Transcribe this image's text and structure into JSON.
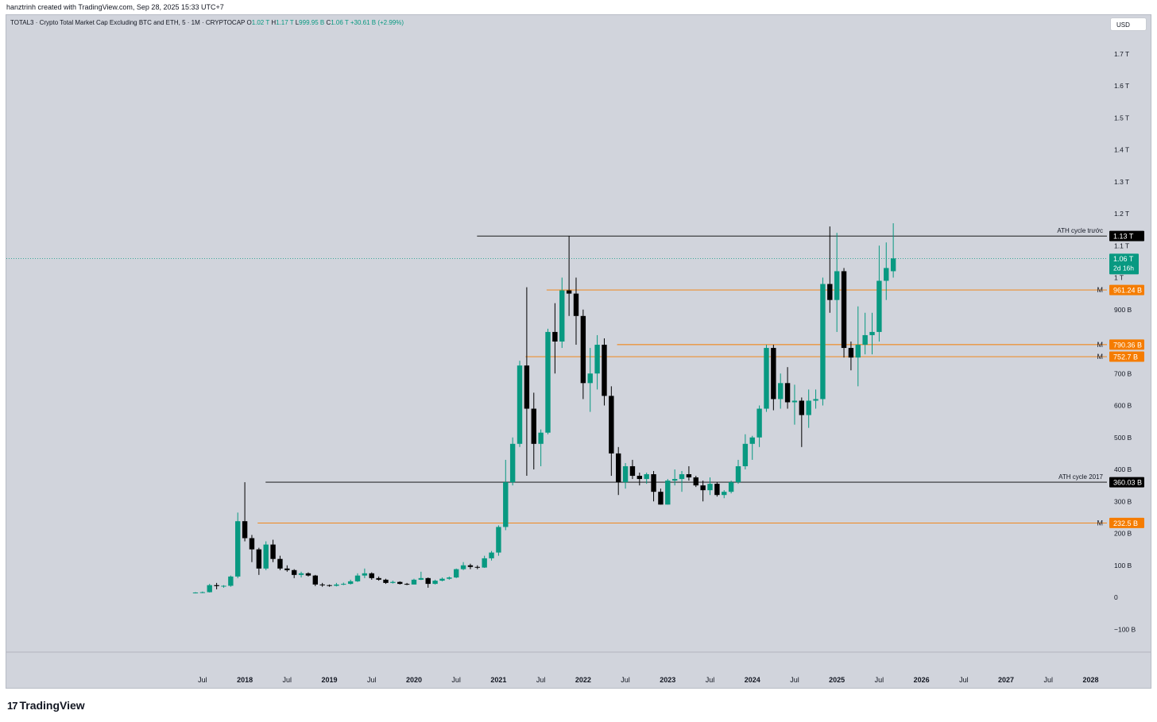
{
  "header": {
    "credit": "hanztrinh created with TradingView.com, Sep 28, 2025 15:33 UTC+7"
  },
  "legend": {
    "symbol": "TOTAL3 · Crypto Total Market Cap Excluding BTC and ETH, 5 · 1M · CRYPTOCAP",
    "open_label": "O",
    "open": "1.02 T",
    "high_label": "H",
    "high": "1.17 T",
    "low_label": "L",
    "low": "999.95 B",
    "close_label": "C",
    "close": "1.06 T",
    "change": "+30.61 B (+2.99%)"
  },
  "currency": "USD",
  "brand": {
    "logo": "17",
    "name": "TradingView"
  },
  "colors": {
    "background": "#d1d4dc",
    "up": "#089981",
    "down": "#000000",
    "level": "#f57c00",
    "ath_line": "#000000"
  },
  "chart_data": {
    "type": "candlestick",
    "interval": "1M",
    "y_axis": {
      "min": -100000000000,
      "max": 1700000000000,
      "side": "right",
      "ticks": [
        {
          "v": 1700000000000,
          "label": "1.7 T"
        },
        {
          "v": 1600000000000,
          "label": "1.6 T"
        },
        {
          "v": 1500000000000,
          "label": "1.5 T"
        },
        {
          "v": 1400000000000,
          "label": "1.4 T"
        },
        {
          "v": 1300000000000,
          "label": "1.3 T"
        },
        {
          "v": 1200000000000,
          "label": "1.2 T"
        },
        {
          "v": 1100000000000,
          "label": "1.1 T"
        },
        {
          "v": 1000000000000,
          "label": "1 T"
        },
        {
          "v": 900000000000,
          "label": "900 B"
        },
        {
          "v": 700000000000,
          "label": "700 B"
        },
        {
          "v": 600000000000,
          "label": "600 B"
        },
        {
          "v": 500000000000,
          "label": "500 B"
        },
        {
          "v": 400000000000,
          "label": "400 B"
        },
        {
          "v": 300000000000,
          "label": "300 B"
        },
        {
          "v": 200000000000,
          "label": "200 B"
        },
        {
          "v": 100000000000,
          "label": "100 B"
        },
        {
          "v": 0,
          "label": "0"
        },
        {
          "v": -100000000000,
          "label": "−100 B"
        }
      ]
    },
    "x_axis": {
      "start": "2017-04",
      "end": "2028-06",
      "ticks": [
        {
          "m": "2017-07",
          "label": "Jul",
          "bold": false
        },
        {
          "m": "2018-01",
          "label": "2018",
          "bold": true
        },
        {
          "m": "2018-07",
          "label": "Jul",
          "bold": false
        },
        {
          "m": "2019-01",
          "label": "2019",
          "bold": true
        },
        {
          "m": "2019-07",
          "label": "Jul",
          "bold": false
        },
        {
          "m": "2020-01",
          "label": "2020",
          "bold": true
        },
        {
          "m": "2020-07",
          "label": "Jul",
          "bold": false
        },
        {
          "m": "2021-01",
          "label": "2021",
          "bold": true
        },
        {
          "m": "2021-07",
          "label": "Jul",
          "bold": false
        },
        {
          "m": "2022-01",
          "label": "2022",
          "bold": true
        },
        {
          "m": "2022-07",
          "label": "Jul",
          "bold": false
        },
        {
          "m": "2023-01",
          "label": "2023",
          "bold": true
        },
        {
          "m": "2023-07",
          "label": "Jul",
          "bold": false
        },
        {
          "m": "2024-01",
          "label": "2024",
          "bold": true
        },
        {
          "m": "2024-07",
          "label": "Jul",
          "bold": false
        },
        {
          "m": "2025-01",
          "label": "2025",
          "bold": true
        },
        {
          "m": "2025-07",
          "label": "Jul",
          "bold": false
        },
        {
          "m": "2026-01",
          "label": "2026",
          "bold": true
        },
        {
          "m": "2026-07",
          "label": "Jul",
          "bold": false
        },
        {
          "m": "2027-01",
          "label": "2027",
          "bold": true
        },
        {
          "m": "2027-07",
          "label": "Jul",
          "bold": false
        },
        {
          "m": "2028-01",
          "label": "2028",
          "bold": true
        }
      ]
    },
    "candles": [
      {
        "m": "2017-06",
        "o": 14,
        "h": 16,
        "l": 12,
        "c": 15
      },
      {
        "m": "2017-07",
        "o": 15,
        "h": 18,
        "l": 13,
        "c": 16
      },
      {
        "m": "2017-08",
        "o": 16,
        "h": 42,
        "l": 15,
        "c": 38
      },
      {
        "m": "2017-09",
        "o": 38,
        "h": 45,
        "l": 25,
        "c": 35
      },
      {
        "m": "2017-10",
        "o": 35,
        "h": 38,
        "l": 30,
        "c": 36
      },
      {
        "m": "2017-11",
        "o": 36,
        "h": 68,
        "l": 33,
        "c": 65
      },
      {
        "m": "2017-12",
        "o": 65,
        "h": 265,
        "l": 60,
        "c": 238
      },
      {
        "m": "2018-01",
        "o": 238,
        "h": 360,
        "l": 175,
        "c": 185
      },
      {
        "m": "2018-02",
        "o": 185,
        "h": 195,
        "l": 110,
        "c": 150
      },
      {
        "m": "2018-03",
        "o": 150,
        "h": 155,
        "l": 70,
        "c": 90
      },
      {
        "m": "2018-04",
        "o": 90,
        "h": 175,
        "l": 85,
        "c": 165
      },
      {
        "m": "2018-05",
        "o": 165,
        "h": 180,
        "l": 110,
        "c": 120
      },
      {
        "m": "2018-06",
        "o": 120,
        "h": 130,
        "l": 85,
        "c": 90
      },
      {
        "m": "2018-07",
        "o": 90,
        "h": 100,
        "l": 80,
        "c": 85
      },
      {
        "m": "2018-08",
        "o": 85,
        "h": 88,
        "l": 60,
        "c": 70
      },
      {
        "m": "2018-09",
        "o": 70,
        "h": 80,
        "l": 62,
        "c": 75
      },
      {
        "m": "2018-10",
        "o": 75,
        "h": 78,
        "l": 65,
        "c": 68
      },
      {
        "m": "2018-11",
        "o": 68,
        "h": 70,
        "l": 35,
        "c": 40
      },
      {
        "m": "2018-12",
        "o": 40,
        "h": 45,
        "l": 33,
        "c": 38
      },
      {
        "m": "2019-01",
        "o": 38,
        "h": 40,
        "l": 33,
        "c": 36
      },
      {
        "m": "2019-02",
        "o": 36,
        "h": 45,
        "l": 34,
        "c": 40
      },
      {
        "m": "2019-03",
        "o": 40,
        "h": 46,
        "l": 38,
        "c": 42
      },
      {
        "m": "2019-04",
        "o": 42,
        "h": 55,
        "l": 40,
        "c": 50
      },
      {
        "m": "2019-05",
        "o": 50,
        "h": 75,
        "l": 48,
        "c": 68
      },
      {
        "m": "2019-06",
        "o": 68,
        "h": 90,
        "l": 60,
        "c": 75
      },
      {
        "m": "2019-07",
        "o": 75,
        "h": 78,
        "l": 55,
        "c": 60
      },
      {
        "m": "2019-08",
        "o": 60,
        "h": 65,
        "l": 52,
        "c": 55
      },
      {
        "m": "2019-09",
        "o": 55,
        "h": 58,
        "l": 42,
        "c": 45
      },
      {
        "m": "2019-10",
        "o": 45,
        "h": 52,
        "l": 43,
        "c": 48
      },
      {
        "m": "2019-11",
        "o": 48,
        "h": 50,
        "l": 40,
        "c": 42
      },
      {
        "m": "2019-12",
        "o": 42,
        "h": 45,
        "l": 38,
        "c": 40
      },
      {
        "m": "2020-01",
        "o": 40,
        "h": 58,
        "l": 40,
        "c": 55
      },
      {
        "m": "2020-02",
        "o": 55,
        "h": 80,
        "l": 54,
        "c": 60
      },
      {
        "m": "2020-03",
        "o": 60,
        "h": 62,
        "l": 30,
        "c": 42
      },
      {
        "m": "2020-04",
        "o": 42,
        "h": 55,
        "l": 40,
        "c": 52
      },
      {
        "m": "2020-05",
        "o": 52,
        "h": 62,
        "l": 50,
        "c": 58
      },
      {
        "m": "2020-06",
        "o": 58,
        "h": 65,
        "l": 55,
        "c": 62
      },
      {
        "m": "2020-07",
        "o": 62,
        "h": 90,
        "l": 60,
        "c": 88
      },
      {
        "m": "2020-08",
        "o": 88,
        "h": 110,
        "l": 85,
        "c": 100
      },
      {
        "m": "2020-09",
        "o": 100,
        "h": 105,
        "l": 88,
        "c": 95
      },
      {
        "m": "2020-10",
        "o": 95,
        "h": 100,
        "l": 88,
        "c": 93
      },
      {
        "m": "2020-11",
        "o": 93,
        "h": 130,
        "l": 92,
        "c": 122
      },
      {
        "m": "2020-12",
        "o": 122,
        "h": 145,
        "l": 115,
        "c": 140
      },
      {
        "m": "2021-01",
        "o": 140,
        "h": 225,
        "l": 130,
        "c": 220
      },
      {
        "m": "2021-02",
        "o": 220,
        "h": 430,
        "l": 210,
        "c": 360
      },
      {
        "m": "2021-03",
        "o": 360,
        "h": 500,
        "l": 350,
        "c": 480
      },
      {
        "m": "2021-04",
        "o": 480,
        "h": 740,
        "l": 470,
        "c": 725
      },
      {
        "m": "2021-05",
        "o": 725,
        "h": 970,
        "l": 380,
        "c": 590
      },
      {
        "m": "2021-06",
        "o": 590,
        "h": 640,
        "l": 400,
        "c": 480
      },
      {
        "m": "2021-07",
        "o": 480,
        "h": 525,
        "l": 410,
        "c": 515
      },
      {
        "m": "2021-08",
        "o": 515,
        "h": 840,
        "l": 510,
        "c": 830
      },
      {
        "m": "2021-09",
        "o": 830,
        "h": 920,
        "l": 700,
        "c": 800
      },
      {
        "m": "2021-10",
        "o": 800,
        "h": 1000,
        "l": 780,
        "c": 960
      },
      {
        "m": "2021-11",
        "o": 960,
        "h": 1130,
        "l": 880,
        "c": 950
      },
      {
        "m": "2021-12",
        "o": 950,
        "h": 1000,
        "l": 790,
        "c": 880
      },
      {
        "m": "2022-01",
        "o": 880,
        "h": 900,
        "l": 620,
        "c": 670
      },
      {
        "m": "2022-02",
        "o": 670,
        "h": 780,
        "l": 580,
        "c": 700
      },
      {
        "m": "2022-03",
        "o": 700,
        "h": 820,
        "l": 650,
        "c": 790
      },
      {
        "m": "2022-04",
        "o": 790,
        "h": 810,
        "l": 600,
        "c": 630
      },
      {
        "m": "2022-05",
        "o": 630,
        "h": 660,
        "l": 380,
        "c": 450
      },
      {
        "m": "2022-06",
        "o": 450,
        "h": 470,
        "l": 320,
        "c": 360
      },
      {
        "m": "2022-07",
        "o": 360,
        "h": 420,
        "l": 340,
        "c": 410
      },
      {
        "m": "2022-08",
        "o": 410,
        "h": 430,
        "l": 370,
        "c": 380
      },
      {
        "m": "2022-09",
        "o": 380,
        "h": 390,
        "l": 350,
        "c": 370
      },
      {
        "m": "2022-10",
        "o": 370,
        "h": 390,
        "l": 355,
        "c": 385
      },
      {
        "m": "2022-11",
        "o": 385,
        "h": 395,
        "l": 300,
        "c": 330
      },
      {
        "m": "2022-12",
        "o": 330,
        "h": 340,
        "l": 290,
        "c": 290
      },
      {
        "m": "2023-01",
        "o": 290,
        "h": 370,
        "l": 290,
        "c": 365
      },
      {
        "m": "2023-02",
        "o": 365,
        "h": 400,
        "l": 350,
        "c": 370
      },
      {
        "m": "2023-03",
        "o": 370,
        "h": 395,
        "l": 330,
        "c": 385
      },
      {
        "m": "2023-04",
        "o": 385,
        "h": 410,
        "l": 365,
        "c": 375
      },
      {
        "m": "2023-05",
        "o": 375,
        "h": 380,
        "l": 345,
        "c": 350
      },
      {
        "m": "2023-06",
        "o": 350,
        "h": 365,
        "l": 300,
        "c": 335
      },
      {
        "m": "2023-07",
        "o": 335,
        "h": 375,
        "l": 320,
        "c": 355
      },
      {
        "m": "2023-08",
        "o": 355,
        "h": 360,
        "l": 315,
        "c": 320
      },
      {
        "m": "2023-09",
        "o": 320,
        "h": 335,
        "l": 310,
        "c": 330
      },
      {
        "m": "2023-10",
        "o": 330,
        "h": 365,
        "l": 325,
        "c": 360
      },
      {
        "m": "2023-11",
        "o": 360,
        "h": 430,
        "l": 355,
        "c": 410
      },
      {
        "m": "2023-12",
        "o": 410,
        "h": 510,
        "l": 400,
        "c": 480
      },
      {
        "m": "2024-01",
        "o": 480,
        "h": 505,
        "l": 430,
        "c": 500
      },
      {
        "m": "2024-02",
        "o": 500,
        "h": 600,
        "l": 470,
        "c": 590
      },
      {
        "m": "2024-03",
        "o": 590,
        "h": 790,
        "l": 580,
        "c": 780
      },
      {
        "m": "2024-04",
        "o": 780,
        "h": 790,
        "l": 585,
        "c": 620
      },
      {
        "m": "2024-05",
        "o": 620,
        "h": 700,
        "l": 590,
        "c": 670
      },
      {
        "m": "2024-06",
        "o": 670,
        "h": 720,
        "l": 590,
        "c": 610
      },
      {
        "m": "2024-07",
        "o": 610,
        "h": 665,
        "l": 540,
        "c": 615
      },
      {
        "m": "2024-08",
        "o": 615,
        "h": 625,
        "l": 470,
        "c": 570
      },
      {
        "m": "2024-09",
        "o": 570,
        "h": 650,
        "l": 530,
        "c": 615
      },
      {
        "m": "2024-10",
        "o": 615,
        "h": 650,
        "l": 590,
        "c": 620
      },
      {
        "m": "2024-11",
        "o": 620,
        "h": 1000,
        "l": 600,
        "c": 980
      },
      {
        "m": "2024-12",
        "o": 980,
        "h": 1160,
        "l": 890,
        "c": 930
      },
      {
        "m": "2025-01",
        "o": 930,
        "h": 1140,
        "l": 830,
        "c": 1020
      },
      {
        "m": "2025-02",
        "o": 1020,
        "h": 1030,
        "l": 750,
        "c": 780
      },
      {
        "m": "2025-03",
        "o": 780,
        "h": 800,
        "l": 710,
        "c": 750
      },
      {
        "m": "2025-04",
        "o": 750,
        "h": 910,
        "l": 660,
        "c": 790
      },
      {
        "m": "2025-05",
        "o": 790,
        "h": 890,
        "l": 760,
        "c": 820
      },
      {
        "m": "2025-06",
        "o": 820,
        "h": 890,
        "l": 760,
        "c": 830
      },
      {
        "m": "2025-07",
        "o": 830,
        "h": 1100,
        "l": 800,
        "c": 990
      },
      {
        "m": "2025-08",
        "o": 990,
        "h": 1110,
        "l": 930,
        "c": 1030
      },
      {
        "m": "2025-09",
        "o": 1020,
        "h": 1170,
        "l": 1000,
        "c": 1060
      }
    ],
    "value_unit_note": "candle values in billions USD",
    "horizontal_lines": [
      {
        "value": 1130,
        "start": "2020-06",
        "label": "1.13 T",
        "caption": "ATH cycle trước",
        "style": "ath"
      },
      {
        "value": 360.03,
        "start": "2017-12",
        "label": "360.03 B",
        "caption": "ATH cycle 2017",
        "style": "ath"
      },
      {
        "value": 961.24,
        "start": "2021-05",
        "label": "961.24 B",
        "tag": "M",
        "style": "level"
      },
      {
        "value": 790.36,
        "start": "2022-03",
        "label": "790.36 B",
        "tag": "M",
        "style": "level"
      },
      {
        "value": 752.7,
        "start": "2021-02",
        "label": "752.7 B",
        "tag": "M",
        "style": "level"
      },
      {
        "value": 232.5,
        "start": "2017-12",
        "label": "232.5 B",
        "tag": "M",
        "style": "level"
      }
    ],
    "last_price": {
      "value": 1060,
      "label": "1.06 T",
      "countdown": "2d 16h"
    }
  }
}
